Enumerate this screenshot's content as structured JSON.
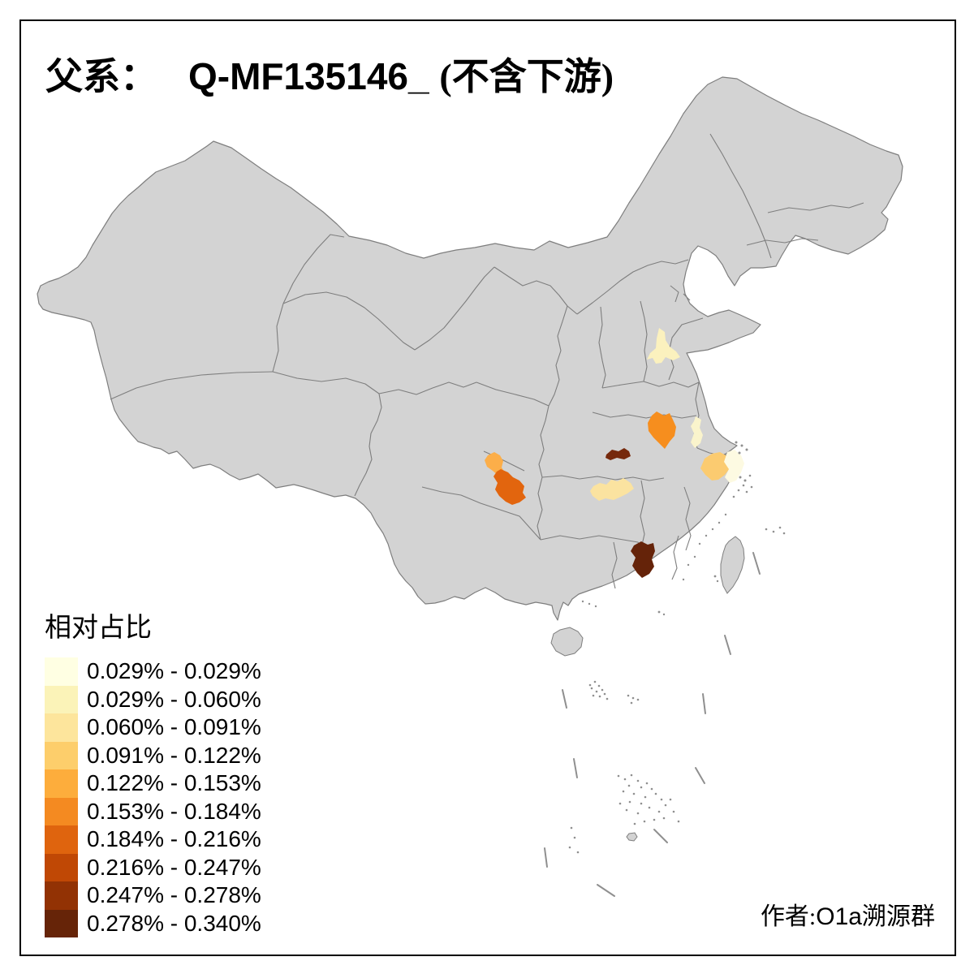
{
  "title": {
    "prefix": "父系：",
    "haplogroup": "Q-MF135146_",
    "suffix": "(不含下游)"
  },
  "legend": {
    "title": "相对占比",
    "classes": [
      {
        "label": "0.029% - 0.029%",
        "color": "#FFFFE3"
      },
      {
        "label": "0.029% - 0.060%",
        "color": "#FBF3B8"
      },
      {
        "label": "0.060% - 0.091%",
        "color": "#FDE59C"
      },
      {
        "label": "0.091% - 0.122%",
        "color": "#FDCE6B"
      },
      {
        "label": "0.122% - 0.153%",
        "color": "#FDAD3C"
      },
      {
        "label": "0.153% - 0.184%",
        "color": "#F48A21"
      },
      {
        "label": "0.184% - 0.216%",
        "color": "#DF640E"
      },
      {
        "label": "0.216% - 0.247%",
        "color": "#C04805"
      },
      {
        "label": "0.247% - 0.278%",
        "color": "#923204"
      },
      {
        "label": "0.278% - 0.340%",
        "color": "#662408"
      }
    ]
  },
  "author": {
    "prefix": "作者:",
    "latin": "O1a",
    "suffix": "溯源群"
  },
  "map": {
    "land_color": "#D3D3D3",
    "border_color": "#7E7E7E",
    "sea_color": "#FFFFFF",
    "frame_color": "#000000",
    "regions": [
      {
        "id": "shandong-jinan",
        "color": "#FBF1BE"
      },
      {
        "id": "anhui-fuyang",
        "color": "#F68E1E"
      },
      {
        "id": "jiangsu-chuzhou",
        "color": "#FAF4CC"
      },
      {
        "id": "hubei-east",
        "color": "#76290C"
      },
      {
        "id": "hunan-north",
        "color": "#FBE3A0"
      },
      {
        "id": "sichuan-northeast",
        "color": "#FCAE49"
      },
      {
        "id": "chongqing",
        "color": "#E2650E"
      },
      {
        "id": "zhejiang-huzhou",
        "color": "#FBCB70"
      },
      {
        "id": "zhejiang-jiaxing",
        "color": "#FDFAE2"
      },
      {
        "id": "guangdong-north",
        "color": "#652309"
      }
    ]
  }
}
